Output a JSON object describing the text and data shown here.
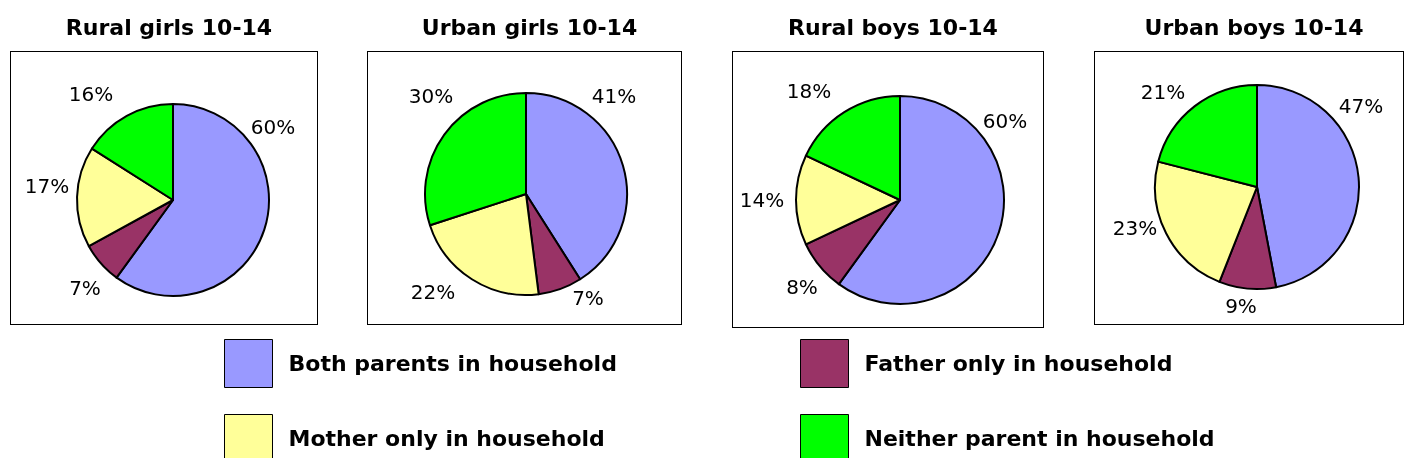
{
  "chart_data": {
    "type": "pie",
    "categories": [
      "Both parents in household",
      "Father only in household",
      "Mother only in household",
      "Neither parent in household"
    ],
    "colors": [
      "#9999ff",
      "#993366",
      "#ffff99",
      "#00ff00"
    ],
    "legend": "bottom",
    "series": [
      {
        "name": "Rural girls 10-14",
        "values": [
          60,
          7,
          17,
          16
        ],
        "value_labels": [
          "60%",
          "7%",
          "17%",
          "16%"
        ]
      },
      {
        "name": "Urban girls 10-14",
        "values": [
          41,
          7,
          22,
          30
        ],
        "value_labels": [
          "41%",
          "7%",
          "22%",
          "30%"
        ]
      },
      {
        "name": "Rural boys 10-14",
        "values": [
          60,
          8,
          14,
          18
        ],
        "value_labels": [
          "60%",
          "8%",
          "14%",
          "18%"
        ]
      },
      {
        "name": "Urban boys 10-14",
        "values": [
          47,
          9,
          23,
          21
        ],
        "value_labels": [
          "47%",
          "9%",
          "23%",
          "21%"
        ]
      }
    ]
  }
}
